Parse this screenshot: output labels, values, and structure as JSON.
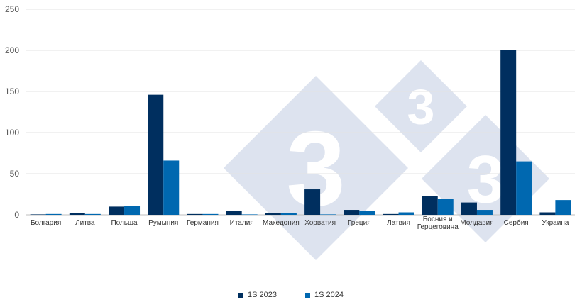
{
  "chart_data": {
    "type": "bar",
    "categories": [
      "Болгария",
      "Литва",
      "Польша",
      "Румыния",
      "Германия",
      "Италия",
      "Македония",
      "Хорватия",
      "Греция",
      "Латвия",
      "Босния и Герцеговина",
      "Молдавия",
      "Сербия",
      "Украина"
    ],
    "series": [
      {
        "name": "1S 2023",
        "color": "#002f5f",
        "values": [
          0,
          2,
          10,
          146,
          1,
          5,
          2,
          31,
          6,
          1,
          23,
          15,
          200,
          3
        ]
      },
      {
        "name": "1S 2024",
        "color": "#0068b0",
        "values": [
          1,
          1,
          11,
          66,
          1,
          0,
          2,
          0,
          5,
          3,
          19,
          6,
          65,
          18
        ]
      }
    ],
    "ylim": [
      0,
      250
    ],
    "yticks": [
      "0",
      "50",
      "100",
      "150",
      "200",
      "250"
    ],
    "grid": true,
    "legend": "bottom-center",
    "watermark": {
      "text": "3",
      "color": "#dde3ef"
    }
  }
}
